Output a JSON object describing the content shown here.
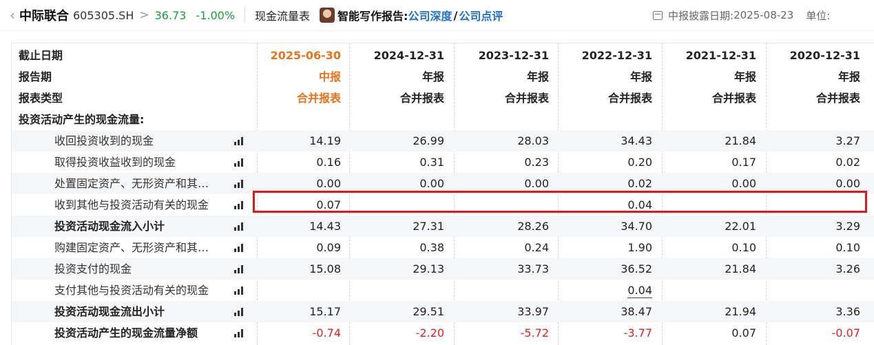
{
  "header": {
    "back_icon": "chevron-left-icon",
    "stock_name": "中际联合",
    "stock_code": "605305.SH",
    "chevron": ">",
    "price": "36.73",
    "change": "-1.00%",
    "report_type": "现金流量表",
    "ai_label": "智能写作报告:",
    "link_depth": "公司深度",
    "slash": "/",
    "link_comment": "公司点评",
    "disclosure_label": "中报披露日期:",
    "disclosure_date": "2025-08-23",
    "unit_label": "单位:",
    "colors": {
      "price": "#1a9f3c",
      "link": "#1e6fd0"
    }
  },
  "table": {
    "colors": {
      "current_period": "#e8731c",
      "negative": "#e02020",
      "highlight": "#e8141c"
    },
    "header_rows": [
      {
        "label": "截止日期",
        "values": [
          "2025-06-30",
          "2024-12-31",
          "2023-12-31",
          "2022-12-31",
          "2021-12-31",
          "2020-12-31"
        ]
      },
      {
        "label": "报告期",
        "values": [
          "中报",
          "年报",
          "年报",
          "年报",
          "年报",
          "年报"
        ]
      },
      {
        "label": "报表类型",
        "values": [
          "合并报表",
          "合并报表",
          "合并报表",
          "合并报表",
          "合并报表",
          "合并报表"
        ]
      }
    ],
    "section_title": "投资活动产生的现金流量:",
    "rows": [
      {
        "label": "收回投资收到的现金",
        "values": [
          "14.19",
          "26.99",
          "28.03",
          "34.43",
          "21.84",
          "3.27"
        ]
      },
      {
        "label": "取得投资收益收到的现金",
        "values": [
          "0.16",
          "0.31",
          "0.23",
          "0.20",
          "0.17",
          "0.02"
        ]
      },
      {
        "label": "处置固定资产、无形资产和其…",
        "values": [
          "0.00",
          "0.00",
          "0.00",
          "0.02",
          "0.00",
          "0.00"
        ]
      },
      {
        "label": "收到其他与投资活动有关的现金",
        "values": [
          "0.07",
          "",
          "",
          "0.04",
          "",
          ""
        ]
      },
      {
        "label": "投资活动现金流入小计",
        "values": [
          "14.43",
          "27.31",
          "28.26",
          "34.70",
          "22.01",
          "3.29"
        ]
      },
      {
        "label": "购建固定资产、无形资产和其…",
        "values": [
          "0.09",
          "0.38",
          "0.24",
          "1.90",
          "0.10",
          "0.10"
        ]
      },
      {
        "label": "投资支付的现金",
        "values": [
          "15.08",
          "29.13",
          "33.73",
          "36.52",
          "21.84",
          "3.26"
        ]
      },
      {
        "label": "支付其他与投资活动有关的现金",
        "values": [
          "",
          "",
          "",
          "0.04",
          "",
          ""
        ]
      },
      {
        "label": "投资活动现金流出小计",
        "values": [
          "15.17",
          "29.51",
          "33.97",
          "38.47",
          "21.94",
          "3.36"
        ]
      },
      {
        "label": "投资活动产生的现金流量净额",
        "values": [
          "-0.74",
          "-2.20",
          "-5.72",
          "-3.77",
          "0.07",
          "-0.07"
        ]
      }
    ]
  }
}
